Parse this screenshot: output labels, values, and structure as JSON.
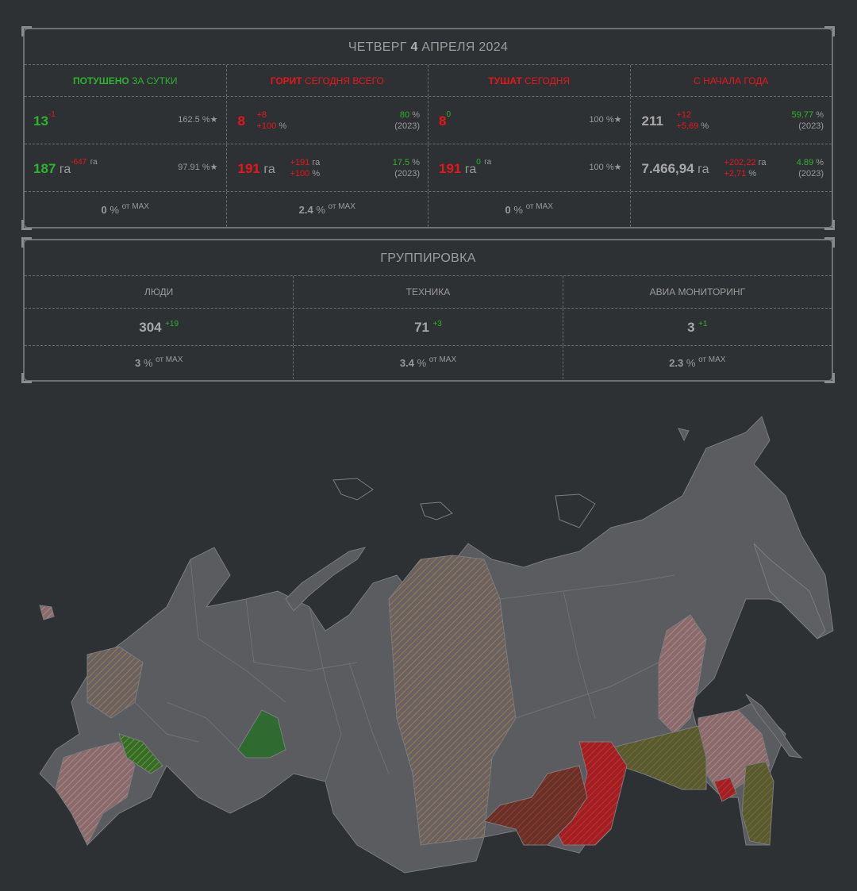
{
  "header": {
    "weekday": "ЧЕТВЕРГ",
    "day": "4",
    "month_year": "АПРЕЛЯ 2024"
  },
  "stats": {
    "col1": {
      "h_bold": "ПОТУШЕНО",
      "h_rest": "ЗА СУТКИ",
      "count": "13",
      "count_delta": "-1",
      "count_pct": "162.5 %★",
      "area": "187",
      "area_unit": "га",
      "area_delta": "-647",
      "area_delta_unit": "га",
      "area_pct": "97.91 %★",
      "max_val": "0",
      "max_unit": "%",
      "max_label": "от MAX"
    },
    "col2": {
      "h_bold": "ГОРИТ",
      "h_rest": "СЕГОДНЯ ВСЕГО",
      "count": "8",
      "count_d1": "+8",
      "count_d2": "+100",
      "count_d2_unit": "%",
      "count_pct": "80",
      "count_pct_unit": "%",
      "count_year": "(2023)",
      "area": "191",
      "area_unit": "га",
      "area_d1": "+191",
      "area_d1_unit": "га",
      "area_d2": "+100",
      "area_d2_unit": "%",
      "area_pct": "17.5",
      "area_pct_unit": "%",
      "area_year": "(2023)",
      "max_val": "2.4",
      "max_unit": "%",
      "max_label": "от MAX"
    },
    "col3": {
      "h_bold": "ТУШАТ",
      "h_rest": "СЕГОДНЯ",
      "count": "8",
      "count_delta": "0",
      "count_pct": "100 %★",
      "area": "191",
      "area_unit": "га",
      "area_delta": "0",
      "area_delta_unit": "га",
      "area_pct": "100 %★",
      "max_val": "0",
      "max_unit": "%",
      "max_label": "от MAX"
    },
    "col4": {
      "h_rest": "С НАЧАЛА ГОДА",
      "count": "211",
      "count_d1": "+12",
      "count_d2": "+5,69",
      "count_d2_unit": "%",
      "count_pct": "59.77",
      "count_pct_unit": "%",
      "count_year": "(2023)",
      "area": "7.466,94",
      "area_unit": "га",
      "area_d1": "+202,22",
      "area_d1_unit": "га",
      "area_d2": "+2,71",
      "area_d2_unit": "%",
      "area_pct": "4.89",
      "area_pct_unit": "%",
      "area_year": "(2023)"
    }
  },
  "grouping": {
    "title": "ГРУППИРОВКА",
    "cols": [
      {
        "label": "ЛЮДИ",
        "value": "304",
        "delta": "+19",
        "max_val": "3",
        "max_unit": "%",
        "max_label": "от MAX"
      },
      {
        "label": "ТЕХНИКА",
        "value": "71",
        "delta": "+3",
        "max_val": "3.4",
        "max_unit": "%",
        "max_label": "от MAX"
      },
      {
        "label": "АВИА МОНИТОРИНГ",
        "value": "3",
        "delta": "+1",
        "max_val": "2.3",
        "max_unit": "%",
        "max_label": "от MAX"
      }
    ]
  },
  "colors": {
    "green": "#2db32d",
    "red": "#e8161a",
    "land": "#5a5c5f",
    "border": "#6e7174"
  }
}
